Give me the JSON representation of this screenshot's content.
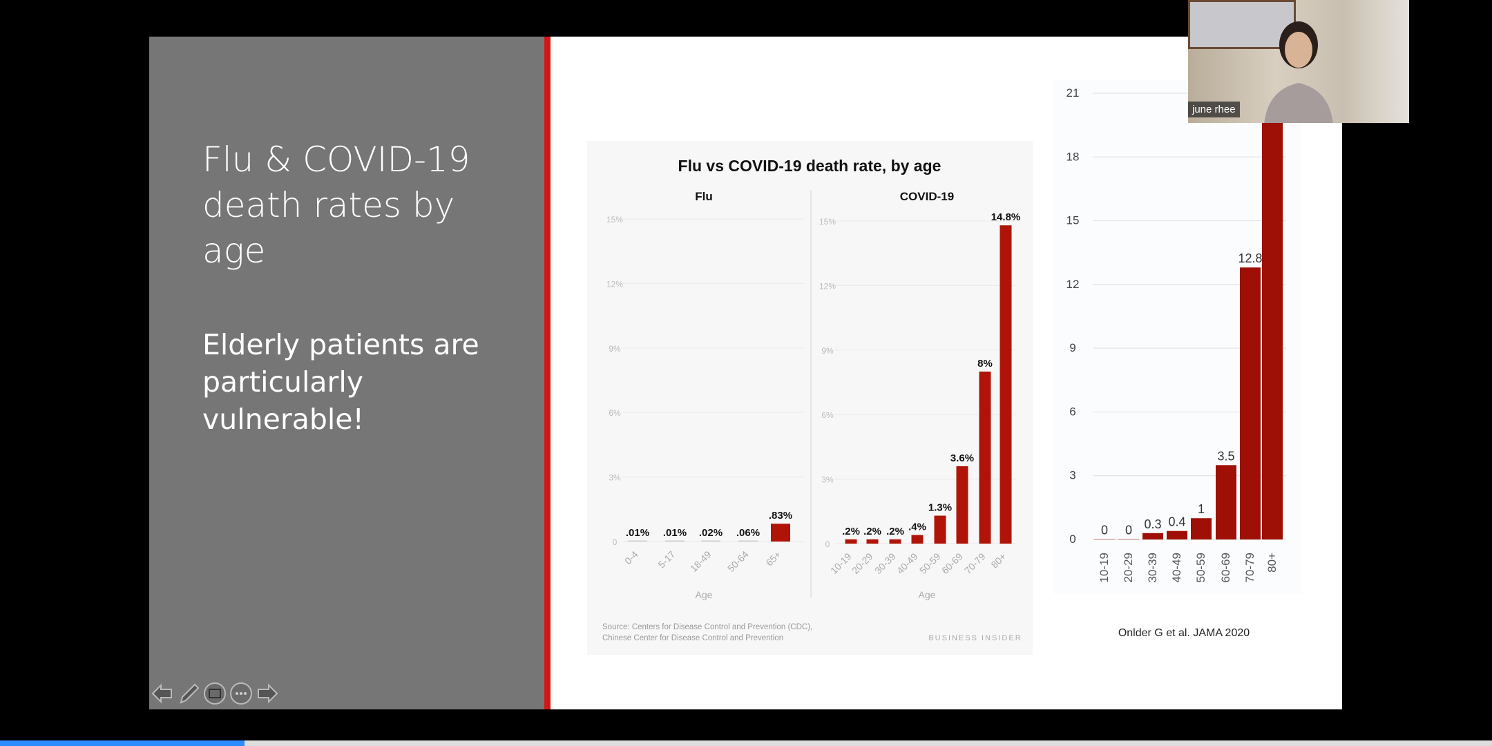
{
  "slide": {
    "title_lines": [
      "Flu & COVID-19",
      "death rates by",
      "age"
    ],
    "subtitle_lines": [
      "Elderly patients are",
      "particularly",
      "vulnerable!"
    ]
  },
  "chart_data": [
    {
      "type": "bar",
      "title": "Flu vs COVID-19 death rate, by age",
      "subtitle": "Flu",
      "xlabel": "Age",
      "ylabel": "",
      "categories": [
        "0-4",
        "5-17",
        "18-49",
        "50-64",
        "65+"
      ],
      "values": [
        0.01,
        0.01,
        0.02,
        0.06,
        0.83
      ],
      "data_labels": [
        ".01%",
        ".01%",
        ".02%",
        ".06%",
        ".83%"
      ],
      "yticks": [
        "0",
        "3%",
        "6%",
        "9%",
        "12%",
        "15%"
      ],
      "ylim": [
        0,
        15
      ],
      "grid": true,
      "bar_color": "#b01408"
    },
    {
      "type": "bar",
      "subtitle": "COVID-19",
      "xlabel": "Age",
      "ylabel": "",
      "categories": [
        "10-19",
        "20-29",
        "30-39",
        "40-49",
        "50-59",
        "60-69",
        "70-79",
        "80+"
      ],
      "values": [
        0.2,
        0.2,
        0.2,
        0.4,
        1.3,
        3.6,
        8,
        14.8
      ],
      "data_labels": [
        ".2%",
        ".2%",
        ".2%",
        ".4%",
        "1.3%",
        "3.6%",
        "8%",
        "14.8%"
      ],
      "yticks": [
        "0",
        "3%",
        "6%",
        "9%",
        "12%",
        "15%"
      ],
      "ylim": [
        0,
        15
      ],
      "grid": true,
      "bar_color": "#b01408",
      "source_lines": [
        "Source: Centers for Disease Control and Prevention (CDC),",
        "Chinese Center for Disease Control and Prevention"
      ],
      "credit": "BUSINESS INSIDER"
    },
    {
      "type": "bar",
      "categories": [
        "10-19",
        "20-29",
        "30-39",
        "40-49",
        "50-59",
        "60-69",
        "70-79",
        "80+"
      ],
      "values": [
        0,
        0,
        0.3,
        0.4,
        1,
        3.5,
        12.8,
        20.2
      ],
      "data_labels": [
        "0",
        "0",
        "0.3",
        "0.4",
        "1",
        "3.5",
        "12.8",
        ""
      ],
      "yticks": [
        "0",
        "3",
        "6",
        "9",
        "12",
        "15",
        "18",
        "21"
      ],
      "ylim": [
        0,
        21
      ],
      "grid": true,
      "bar_color": "#9e0f05",
      "caption": "Onlder G et al. JAMA 2020"
    }
  ],
  "video": {
    "participant_name": "june rhee"
  },
  "controls": {
    "prev": "previous-slide",
    "pen": "pen-tool",
    "subtitles": "subtitles",
    "more": "more-options",
    "next": "next-slide"
  },
  "progress": {
    "percent": 16.4,
    "color": "#2d8cff"
  }
}
